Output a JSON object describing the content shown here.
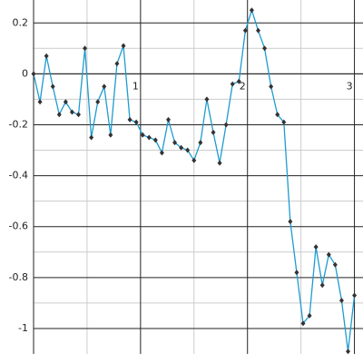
{
  "chart_data": {
    "type": "line",
    "x": [
      0,
      0.06,
      0.12,
      0.18,
      0.24,
      0.3,
      0.36,
      0.42,
      0.48,
      0.54,
      0.6,
      0.66,
      0.72,
      0.78,
      0.84,
      0.9,
      0.96,
      1.02,
      1.08,
      1.14,
      1.2,
      1.26,
      1.32,
      1.38,
      1.44,
      1.5,
      1.56,
      1.62,
      1.68,
      1.74,
      1.8,
      1.86,
      1.92,
      1.98,
      2.04,
      2.1,
      2.16,
      2.22,
      2.28,
      2.34,
      2.4,
      2.46,
      2.52,
      2.58,
      2.64,
      2.7,
      2.76,
      2.82,
      2.88,
      2.94,
      3.0
    ],
    "series": [
      {
        "color": "#1f9bcf",
        "marker_color": "#333333",
        "values": [
          0,
          -0.11,
          0.07,
          -0.05,
          -0.16,
          -0.11,
          -0.15,
          -0.16,
          0.1,
          -0.25,
          -0.11,
          -0.05,
          -0.24,
          0.04,
          0.11,
          -0.18,
          -0.19,
          -0.24,
          -0.25,
          -0.26,
          -0.31,
          -0.18,
          -0.27,
          -0.29,
          -0.3,
          -0.34,
          -0.27,
          -0.1,
          -0.23,
          -0.35,
          -0.2,
          -0.04,
          -0.03,
          0.17,
          0.25,
          0.17,
          0.1,
          -0.05,
          -0.16,
          -0.19,
          -0.58,
          -0.78,
          -0.98,
          -0.95,
          -0.68,
          -0.83,
          -0.71,
          -0.75,
          -0.89,
          -1.09,
          -0.87
        ]
      }
    ],
    "xlim": [
      0,
      3.08
    ],
    "ylim": [
      -1.1,
      0.29
    ],
    "xticks": [
      1,
      2,
      3
    ],
    "yticks": [
      0.2,
      0,
      -0.2,
      -0.4,
      -0.6,
      -0.8,
      -1
    ],
    "grid": true,
    "minor_grid": true
  }
}
